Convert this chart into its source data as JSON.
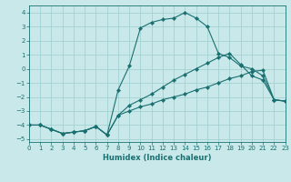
{
  "xlabel": "Humidex (Indice chaleur)",
  "background_color": "#c8e8ea",
  "grid_color": "#9ecece",
  "line_color": "#1a7070",
  "xlim": [
    0,
    23
  ],
  "ylim": [
    -5.2,
    4.5
  ],
  "xticks": [
    0,
    1,
    2,
    3,
    4,
    5,
    6,
    7,
    8,
    9,
    10,
    11,
    12,
    13,
    14,
    15,
    16,
    17,
    18,
    19,
    20,
    21,
    22,
    23
  ],
  "yticks": [
    -5,
    -4,
    -3,
    -2,
    -1,
    0,
    1,
    2,
    3,
    4
  ],
  "series": [
    {
      "x": [
        0,
        1,
        2,
        3,
        4,
        5,
        6,
        7,
        8,
        9,
        10,
        11,
        12,
        13,
        14,
        15,
        16,
        17,
        18,
        19,
        20,
        21,
        22,
        23
      ],
      "y": [
        -4.0,
        -4.0,
        -4.3,
        -4.6,
        -4.5,
        -4.4,
        -4.1,
        -4.7,
        -3.3,
        -3.0,
        -2.7,
        -2.5,
        -2.2,
        -2.0,
        -1.8,
        -1.5,
        -1.3,
        -1.0,
        -0.7,
        -0.5,
        -0.2,
        -0.1,
        -2.2,
        -2.3
      ]
    },
    {
      "x": [
        0,
        1,
        2,
        3,
        4,
        5,
        6,
        7,
        8,
        9,
        10,
        11,
        12,
        13,
        14,
        15,
        16,
        17,
        18,
        19,
        20,
        21,
        22,
        23
      ],
      "y": [
        -4.0,
        -4.0,
        -4.3,
        -4.6,
        -4.5,
        -4.4,
        -4.1,
        -4.7,
        -3.3,
        -2.6,
        -2.2,
        -1.8,
        -1.3,
        -0.8,
        -0.4,
        0.0,
        0.4,
        0.8,
        1.1,
        0.3,
        -0.5,
        -0.8,
        -2.2,
        -2.3
      ]
    },
    {
      "x": [
        0,
        1,
        2,
        3,
        4,
        5,
        6,
        7,
        8,
        9,
        10,
        11,
        12,
        13,
        14,
        15,
        16,
        17,
        18,
        19,
        20,
        21,
        22,
        23
      ],
      "y": [
        -4.0,
        -4.0,
        -4.3,
        -4.6,
        -4.5,
        -4.4,
        -4.1,
        -4.7,
        -1.5,
        0.2,
        2.9,
        3.3,
        3.5,
        3.6,
        4.0,
        3.6,
        3.0,
        1.1,
        0.8,
        0.2,
        0.0,
        -0.5,
        -2.2,
        -2.3
      ]
    }
  ]
}
